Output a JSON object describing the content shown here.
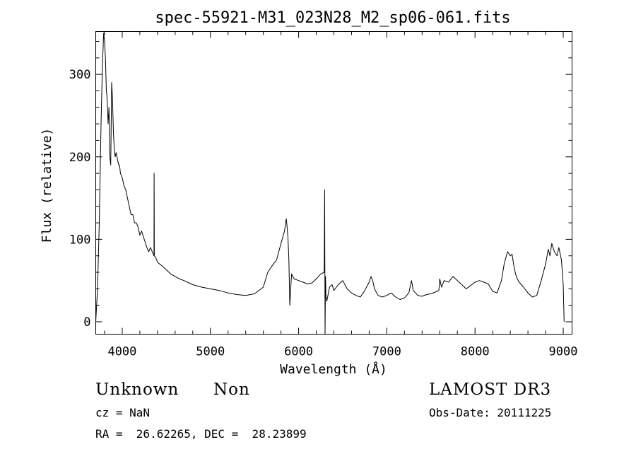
{
  "chart_data": {
    "type": "line",
    "title": "spec-55921-M31_023N28_M2_sp06-061.fits",
    "xlabel": "Wavelength (Å)",
    "ylabel": "Flux (relative)",
    "xlim": [
      3700,
      9100
    ],
    "ylim": [
      -15,
      352
    ],
    "xticks": [
      4000,
      5000,
      6000,
      7000,
      8000,
      9000
    ],
    "yticks": [
      0,
      100,
      200,
      300
    ],
    "grid": false,
    "series": [
      {
        "x": [
          3700,
          3720,
          3740,
          3760,
          3775,
          3790,
          3800,
          3810,
          3820,
          3830,
          3840,
          3850,
          3860,
          3870,
          3880,
          3890,
          3900,
          3910,
          3920,
          3930,
          3940,
          3950,
          3960,
          3970,
          3980,
          4000,
          4020,
          4040,
          4060,
          4080,
          4100,
          4120,
          4140,
          4160,
          4180,
          4200,
          4220,
          4250,
          4280,
          4300,
          4320,
          4340,
          4360,
          4362,
          4364,
          4380,
          4400,
          4450,
          4500,
          4550,
          4600,
          4650,
          4700,
          4800,
          4900,
          5000,
          5100,
          5200,
          5300,
          5400,
          5500,
          5600,
          5650,
          5700,
          5750,
          5800,
          5840,
          5860,
          5870,
          5880,
          5890,
          5900,
          5920,
          5950,
          6000,
          6050,
          6100,
          6150,
          6200,
          6250,
          6290,
          6295,
          6300,
          6305,
          6310,
          6320,
          6350,
          6380,
          6400,
          6450,
          6500,
          6550,
          6600,
          6650,
          6700,
          6750,
          6800,
          6820,
          6840,
          6860,
          6900,
          6950,
          7000,
          7050,
          7100,
          7150,
          7200,
          7250,
          7280,
          7300,
          7350,
          7400,
          7450,
          7500,
          7550,
          7590,
          7600,
          7620,
          7650,
          7700,
          7750,
          7800,
          7850,
          7900,
          7950,
          8000,
          8050,
          8100,
          8150,
          8200,
          8250,
          8300,
          8330,
          8350,
          8370,
          8400,
          8420,
          8440,
          8460,
          8480,
          8500,
          8550,
          8600,
          8650,
          8700,
          8750,
          8800,
          8830,
          8850,
          8870,
          8900,
          8930,
          8950,
          8980,
          9000,
          9010
        ],
        "values": [
          0,
          40,
          120,
          240,
          310,
          350,
          340,
          320,
          280,
          270,
          240,
          260,
          200,
          190,
          290,
          270,
          230,
          210,
          200,
          205,
          200,
          195,
          190,
          190,
          180,
          175,
          165,
          160,
          150,
          140,
          130,
          130,
          120,
          120,
          115,
          105,
          110,
          100,
          90,
          85,
          90,
          85,
          80,
          180,
          80,
          78,
          72,
          68,
          63,
          58,
          55,
          52,
          50,
          45,
          42,
          40,
          38,
          35,
          33,
          32,
          34,
          42,
          60,
          68,
          75,
          95,
          110,
          125,
          115,
          100,
          75,
          20,
          58,
          52,
          50,
          48,
          46,
          47,
          52,
          58,
          60,
          160,
          -15,
          55,
          30,
          25,
          42,
          45,
          38,
          45,
          50,
          40,
          35,
          32,
          30,
          38,
          48,
          55,
          50,
          40,
          32,
          30,
          32,
          35,
          30,
          27,
          29,
          35,
          50,
          38,
          32,
          31,
          33,
          34,
          36,
          38,
          52,
          42,
          50,
          48,
          55,
          50,
          45,
          40,
          44,
          48,
          50,
          48,
          46,
          37,
          35,
          50,
          70,
          78,
          85,
          80,
          82,
          68,
          58,
          52,
          48,
          42,
          35,
          30,
          32,
          50,
          70,
          88,
          80,
          95,
          85,
          80,
          90,
          75,
          45,
          0
        ]
      }
    ]
  },
  "info": {
    "class_label": "Unknown",
    "subclass_label": "Non",
    "survey": "LAMOST DR3",
    "redshift_line": "cz = NaN",
    "obs_date_line": "Obs-Date: 20111225",
    "coords_line": "RA =  26.62265, DEC =  28.23899"
  }
}
